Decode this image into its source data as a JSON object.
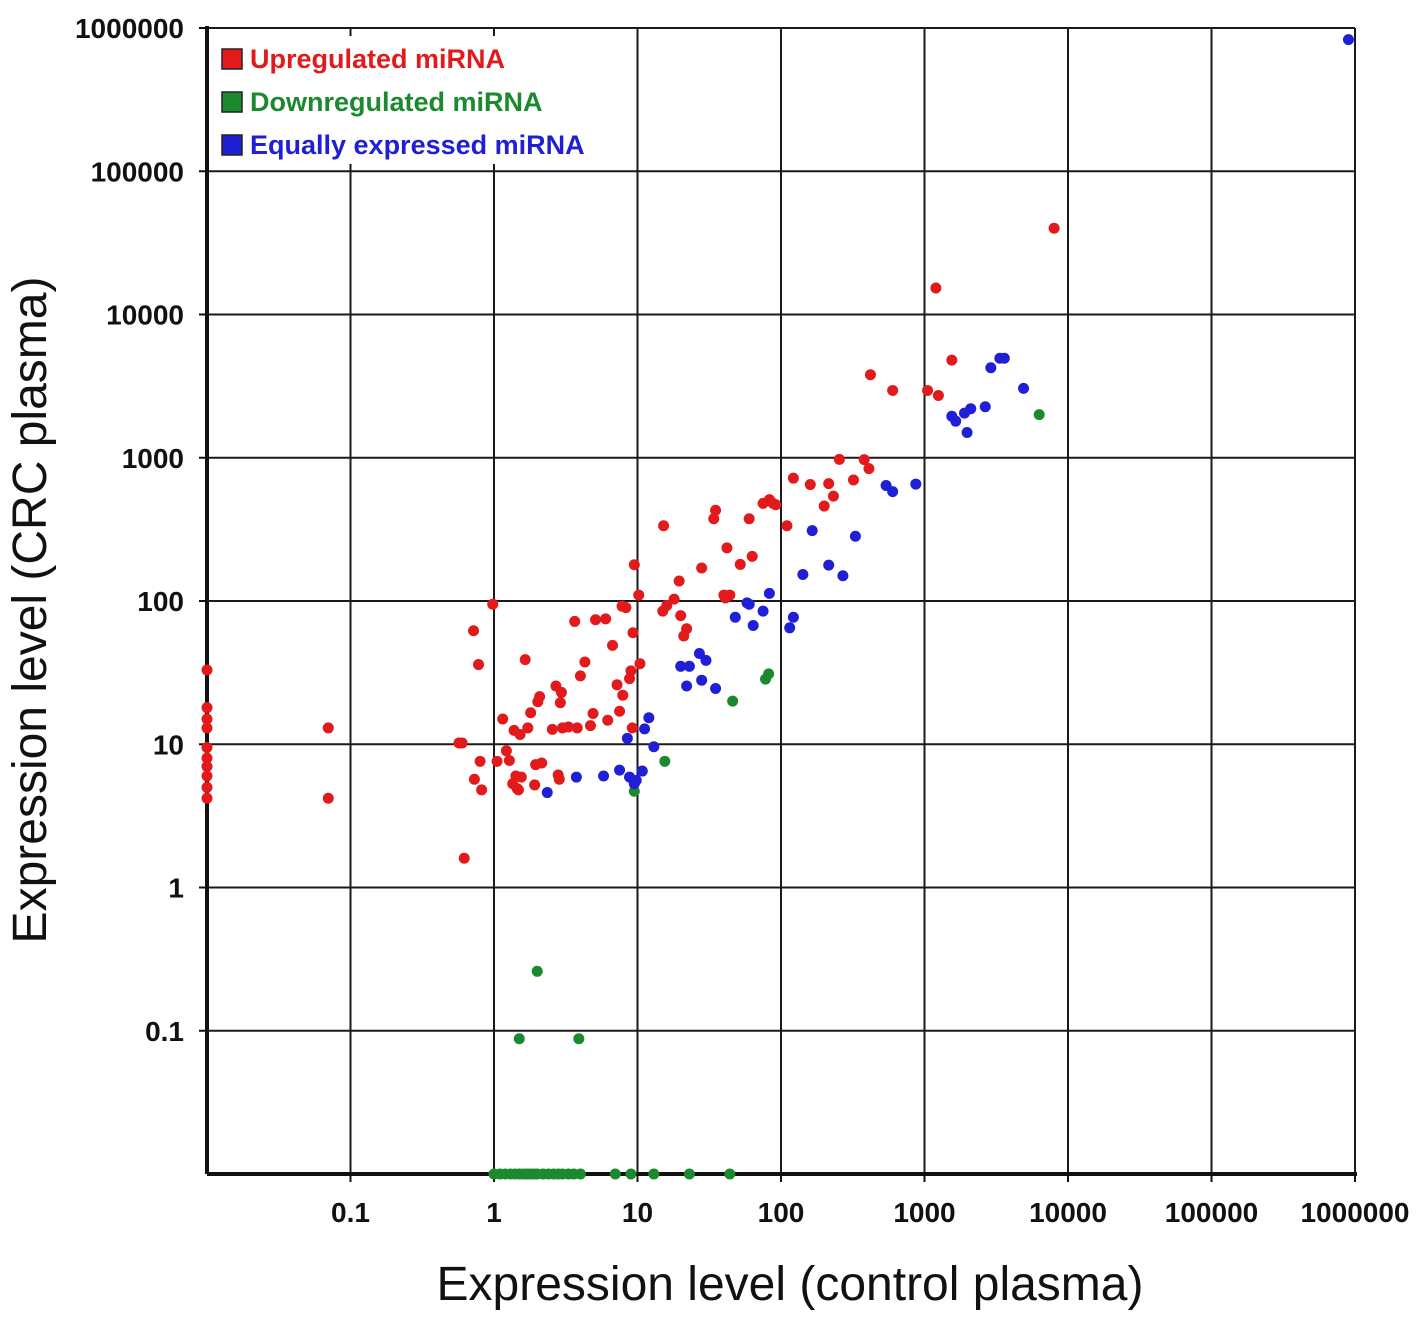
{
  "chart_data": {
    "type": "scatter",
    "title": "",
    "xlabel": "Expression level (control plasma)",
    "ylabel": "Expression level (CRC plasma)",
    "x_scale": "log",
    "y_scale": "log",
    "xlim": [
      0.01,
      1000000
    ],
    "ylim": [
      0.01,
      1000000
    ],
    "x_ticks": [
      "0.1",
      "1",
      "10",
      "100",
      "1000",
      "10000",
      "100000",
      "1000000"
    ],
    "y_ticks": [
      "0.1",
      "1",
      "10",
      "100",
      "1000",
      "10000",
      "100000",
      "1000000"
    ],
    "grid": true,
    "legend_position": "top-left",
    "series": [
      {
        "name": "Upregulated miRNA",
        "color": "#e31a1c",
        "points": [
          [
            0.01,
            33
          ],
          [
            0.01,
            18
          ],
          [
            0.01,
            15
          ],
          [
            0.01,
            13
          ],
          [
            0.01,
            9.5
          ],
          [
            0.01,
            8
          ],
          [
            0.01,
            7
          ],
          [
            0.01,
            6
          ],
          [
            0.01,
            5
          ],
          [
            0.01,
            4.2
          ],
          [
            0.07,
            13
          ],
          [
            0.07,
            4.2
          ],
          [
            0.57,
            10.2
          ],
          [
            0.6,
            10.2
          ],
          [
            0.62,
            1.6
          ],
          [
            0.72,
            62
          ],
          [
            0.78,
            36
          ],
          [
            0.73,
            5.7
          ],
          [
            0.8,
            7.6
          ],
          [
            0.82,
            4.8
          ],
          [
            0.98,
            95
          ],
          [
            1.05,
            7.6
          ],
          [
            1.15,
            15
          ],
          [
            1.22,
            9
          ],
          [
            1.28,
            7.7
          ],
          [
            1.35,
            5.3
          ],
          [
            1.38,
            12.5
          ],
          [
            1.42,
            6
          ],
          [
            1.45,
            4.9
          ],
          [
            1.48,
            4.8
          ],
          [
            1.52,
            11.7
          ],
          [
            1.55,
            5.9
          ],
          [
            1.65,
            39
          ],
          [
            1.72,
            13
          ],
          [
            1.8,
            16.6
          ],
          [
            1.95,
            7.2
          ],
          [
            1.92,
            5.2
          ],
          [
            2.02,
            19.8
          ],
          [
            2.08,
            21.5
          ],
          [
            2.15,
            7.4
          ],
          [
            2.55,
            12.7
          ],
          [
            2.7,
            25.5
          ],
          [
            2.8,
            6.1
          ],
          [
            2.85,
            5.7
          ],
          [
            2.9,
            19.5
          ],
          [
            2.95,
            23
          ],
          [
            3.0,
            13
          ],
          [
            3.3,
            13.2
          ],
          [
            3.65,
            72
          ],
          [
            3.8,
            13
          ],
          [
            4.0,
            30
          ],
          [
            4.3,
            37.5
          ],
          [
            4.7,
            13.5
          ],
          [
            4.9,
            16.4
          ],
          [
            5.1,
            74
          ],
          [
            6.0,
            75
          ],
          [
            6.2,
            14.7
          ],
          [
            6.7,
            49
          ],
          [
            7.2,
            26
          ],
          [
            7.5,
            17
          ],
          [
            7.8,
            92
          ],
          [
            7.9,
            22
          ],
          [
            8.3,
            90
          ],
          [
            8.8,
            28.7
          ],
          [
            9.0,
            32.5
          ],
          [
            9.2,
            13
          ],
          [
            9.3,
            60
          ],
          [
            9.5,
            179
          ],
          [
            10.2,
            110
          ],
          [
            10.4,
            36.5
          ],
          [
            15.0,
            85
          ],
          [
            15.2,
            335
          ],
          [
            16.0,
            93
          ],
          [
            18.0,
            103
          ],
          [
            19.5,
            138
          ],
          [
            20.0,
            79
          ],
          [
            21.0,
            57
          ],
          [
            22.0,
            64
          ],
          [
            28.0,
            170
          ],
          [
            34.0,
            375
          ],
          [
            35.0,
            430
          ],
          [
            40.0,
            110
          ],
          [
            41.0,
            105
          ],
          [
            42.0,
            235
          ],
          [
            44.0,
            110
          ],
          [
            52.0,
            180
          ],
          [
            60.0,
            375
          ],
          [
            63.0,
            205
          ],
          [
            75.0,
            480
          ],
          [
            83.0,
            510
          ],
          [
            88.0,
            480
          ],
          [
            92.0,
            470
          ],
          [
            110.0,
            335
          ],
          [
            122.0,
            720
          ],
          [
            160.0,
            650
          ],
          [
            200.0,
            460
          ],
          [
            215.0,
            660
          ],
          [
            232.0,
            540
          ],
          [
            255.0,
            975
          ],
          [
            320.0,
            700
          ],
          [
            380.0,
            970
          ],
          [
            410.0,
            840
          ],
          [
            420.0,
            3800
          ],
          [
            600.0,
            2950
          ],
          [
            1050.0,
            2950
          ],
          [
            1200.0,
            15300
          ],
          [
            1250.0,
            2720
          ],
          [
            1550.0,
            4800
          ],
          [
            8000.0,
            40000
          ]
        ]
      },
      {
        "name": "Downregulated miRNA",
        "color": "#1b8a2e",
        "points": [
          [
            9.5,
            4.7
          ],
          [
            15.5,
            7.6
          ],
          [
            46.0,
            20
          ],
          [
            78.0,
            28.5
          ],
          [
            82.0,
            31
          ],
          [
            6300.0,
            2000
          ],
          [
            2.0,
            0.26
          ],
          [
            1.5,
            0.088
          ],
          [
            3.9,
            0.088
          ],
          [
            1.0,
            0.01
          ],
          [
            1.1,
            0.01
          ],
          [
            1.2,
            0.01
          ],
          [
            1.3,
            0.01
          ],
          [
            1.4,
            0.01
          ],
          [
            1.5,
            0.01
          ],
          [
            1.6,
            0.01
          ],
          [
            1.7,
            0.01
          ],
          [
            1.8,
            0.01
          ],
          [
            1.9,
            0.01
          ],
          [
            2.0,
            0.01
          ],
          [
            2.2,
            0.01
          ],
          [
            2.4,
            0.01
          ],
          [
            2.6,
            0.01
          ],
          [
            2.8,
            0.01
          ],
          [
            3.0,
            0.01
          ],
          [
            3.3,
            0.01
          ],
          [
            3.6,
            0.01
          ],
          [
            4.0,
            0.01
          ],
          [
            7.0,
            0.01
          ],
          [
            9.0,
            0.01
          ],
          [
            13.0,
            0.01
          ],
          [
            23.0,
            0.01
          ],
          [
            44.0,
            0.01
          ]
        ]
      },
      {
        "name": "Equally expressed miRNA",
        "color": "#1f1fd6",
        "points": [
          [
            2.35,
            4.6
          ],
          [
            3.75,
            5.9
          ],
          [
            5.8,
            6
          ],
          [
            7.5,
            6.6
          ],
          [
            8.5,
            11
          ],
          [
            8.8,
            5.9
          ],
          [
            9.5,
            5.3
          ],
          [
            9.8,
            5.6
          ],
          [
            10.8,
            6.5
          ],
          [
            11.2,
            12.8
          ],
          [
            12.0,
            15.3
          ],
          [
            13.0,
            9.6
          ],
          [
            20.0,
            35
          ],
          [
            22.0,
            25.5
          ],
          [
            23.0,
            35
          ],
          [
            27.0,
            43
          ],
          [
            28.0,
            28
          ],
          [
            30.0,
            38.5
          ],
          [
            35.0,
            24.5
          ],
          [
            48.0,
            77
          ],
          [
            58.0,
            97
          ],
          [
            60.0,
            95
          ],
          [
            64.0,
            67.5
          ],
          [
            75.0,
            85
          ],
          [
            83.0,
            113
          ],
          [
            115.0,
            65
          ],
          [
            122.0,
            77
          ],
          [
            142.0,
            153
          ],
          [
            165.0,
            310
          ],
          [
            215.0,
            178
          ],
          [
            270.0,
            150
          ],
          [
            330.0,
            283
          ],
          [
            540.0,
            640
          ],
          [
            600.0,
            580
          ],
          [
            870.0,
            655
          ],
          [
            1550.0,
            1950
          ],
          [
            1650.0,
            1800
          ],
          [
            1900.0,
            2050
          ],
          [
            1980.0,
            1500
          ],
          [
            2100.0,
            2200
          ],
          [
            2650.0,
            2270
          ],
          [
            2900.0,
            4250
          ],
          [
            3350.0,
            4950
          ],
          [
            3600.0,
            4950
          ],
          [
            4900.0,
            3050
          ],
          [
            900000.0,
            830000
          ]
        ]
      }
    ]
  }
}
